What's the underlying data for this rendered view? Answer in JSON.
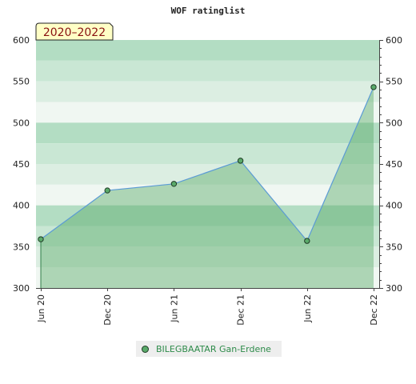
{
  "chart_data": {
    "type": "area",
    "title": "WOF ratinglist",
    "period_label": "2020–2022",
    "categories": [
      "Jun 20",
      "Dec 20",
      "Jun 21",
      "Dec 21",
      "Jun 22",
      "Dec 22"
    ],
    "series": [
      {
        "name": "BILEGBAATAR Gan-Erdene",
        "values": [
          359,
          418,
          426,
          454,
          357,
          543
        ]
      }
    ],
    "ylim": [
      300,
      600
    ],
    "yticks": [
      300,
      350,
      400,
      450,
      500,
      550,
      600
    ],
    "y_axis_both_sides": true,
    "legend_position": "bottom-center",
    "colors": {
      "line": "#5b9bd5",
      "area": "#5aaa6a",
      "marker": "#5aaa6a",
      "band_dark": "#b3ddc3",
      "band_mid": "#c9e7d4",
      "band_light": "#dceee2",
      "band_lightest": "#f0f7f2",
      "legend_text": "#2e8b4a"
    }
  }
}
